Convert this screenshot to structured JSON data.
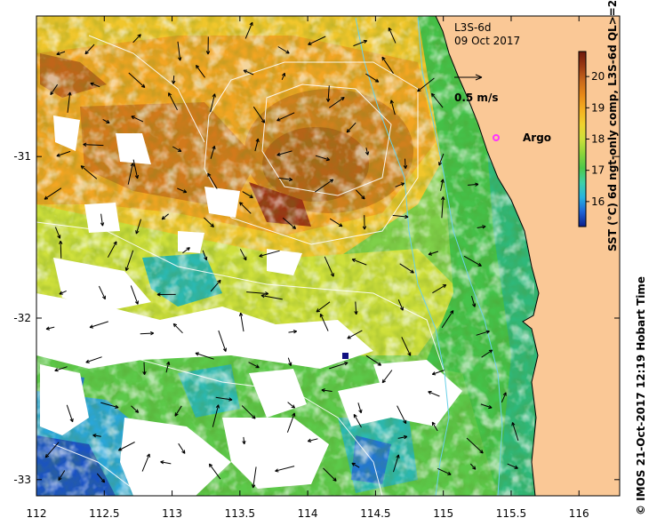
{
  "map": {
    "product": "L3S-6d",
    "date": "09 Oct 2017",
    "velocity_scale_label": "0.5 m/s",
    "argo_label": "Argo",
    "credit": "© IMOS 21-Oct-2017 12:19 Hobart Time",
    "colorbar": {
      "title": "SST (°C) 6d ngt-only comp, L3S-6d QL>=2",
      "min": 15.2,
      "max": 20.8,
      "ticks": [
        "20",
        "19",
        "18",
        "17",
        "16"
      ],
      "colors": [
        "#0b1e8a",
        "#1d63d6",
        "#26b2e0",
        "#3ed0a8",
        "#4cc84a",
        "#8cd43a",
        "#cde03a",
        "#f0d22e",
        "#f5b021",
        "#e88a18",
        "#c9681c",
        "#9c3a14",
        "#6e1a0e"
      ]
    },
    "x_axis": {
      "ticks": [
        "112",
        "112.5",
        "113",
        "113.5",
        "114",
        "114.5",
        "115",
        "115.5",
        "116"
      ]
    },
    "y_axis": {
      "ticks": [
        "-31",
        "-32",
        "-33"
      ]
    },
    "land_color": "#fac896",
    "argo_color": "#ff33ff"
  }
}
